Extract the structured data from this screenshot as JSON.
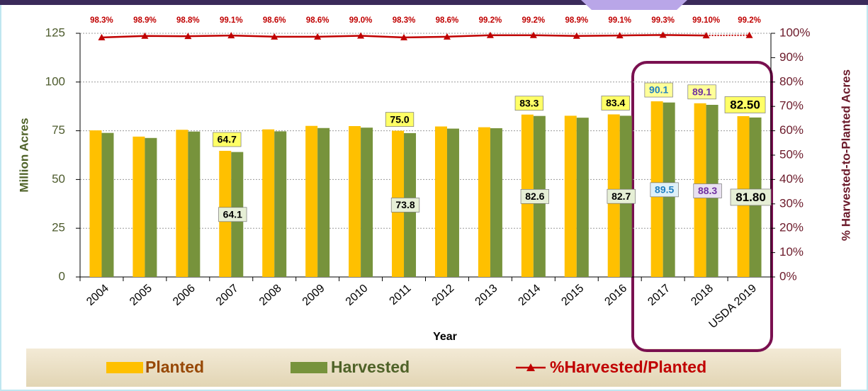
{
  "chart_data": {
    "type": "bar",
    "xlabel": "Year",
    "ylabel": "Million Acres",
    "y2label": "% Harvested-to-Planted Acres",
    "categories": [
      "2004",
      "2005",
      "2006",
      "2007",
      "2008",
      "2009",
      "2010",
      "2011",
      "2012",
      "2013",
      "2014",
      "2015",
      "2016",
      "2017",
      "2018",
      "USDA 2019"
    ],
    "series": [
      {
        "name": "Planted",
        "color": "#ffc000",
        "values": [
          75.2,
          72.0,
          75.5,
          64.7,
          75.7,
          77.5,
          77.4,
          75.0,
          77.2,
          76.8,
          83.3,
          82.7,
          83.4,
          90.1,
          89.1,
          82.5
        ],
        "value_labels": [
          null,
          null,
          null,
          "64.7",
          null,
          null,
          null,
          "75.0",
          null,
          null,
          "83.3",
          null,
          "83.4",
          "90.1",
          "89.1",
          "82.50"
        ]
      },
      {
        "name": "Harvested",
        "color": "#77933c",
        "values": [
          73.9,
          71.3,
          74.6,
          64.1,
          74.7,
          76.4,
          76.6,
          73.8,
          76.1,
          76.3,
          82.6,
          81.7,
          82.7,
          89.5,
          88.3,
          81.8
        ],
        "value_labels": [
          null,
          null,
          null,
          "64.1",
          null,
          null,
          null,
          "73.8",
          null,
          null,
          "82.6",
          null,
          "82.7",
          "89.5",
          "88.3",
          "81.80"
        ]
      },
      {
        "name": "%Harvested/Planted",
        "color": "#c00000",
        "type": "line",
        "axis": "y2",
        "values": [
          98.3,
          98.9,
          98.8,
          99.1,
          98.6,
          98.6,
          99.0,
          98.3,
          98.6,
          99.2,
          99.2,
          98.9,
          99.1,
          99.3,
          99.1,
          99.2
        ],
        "value_labels": [
          "98.3%",
          "98.9%",
          "98.8%",
          "99.1%",
          "98.6%",
          "98.6%",
          "99.0%",
          "98.3%",
          "98.6%",
          "99.2%",
          "99.2%",
          "98.9%",
          "99.1%",
          "99.3%",
          "99.10%",
          "99.2%"
        ]
      }
    ],
    "ylim": [
      0,
      125
    ],
    "yticks": [
      0,
      25,
      50,
      75,
      100,
      125
    ],
    "y2lim": [
      0,
      100
    ],
    "y2ticks": [
      {
        "value": 0,
        "label": "0%"
      },
      {
        "value": 10,
        "label": "10%"
      },
      {
        "value": 20,
        "label": "20%"
      },
      {
        "value": 30,
        "label": "30%"
      },
      {
        "value": 40,
        "label": "40%"
      },
      {
        "value": 50,
        "label": "50%"
      },
      {
        "value": 60,
        "label": "60%"
      },
      {
        "value": 70,
        "label": "70%"
      },
      {
        "value": 80,
        "label": "80%"
      },
      {
        "value": 90,
        "label": "90%"
      },
      {
        "value": 100,
        "label": "100%"
      }
    ],
    "grid": true
  }
}
